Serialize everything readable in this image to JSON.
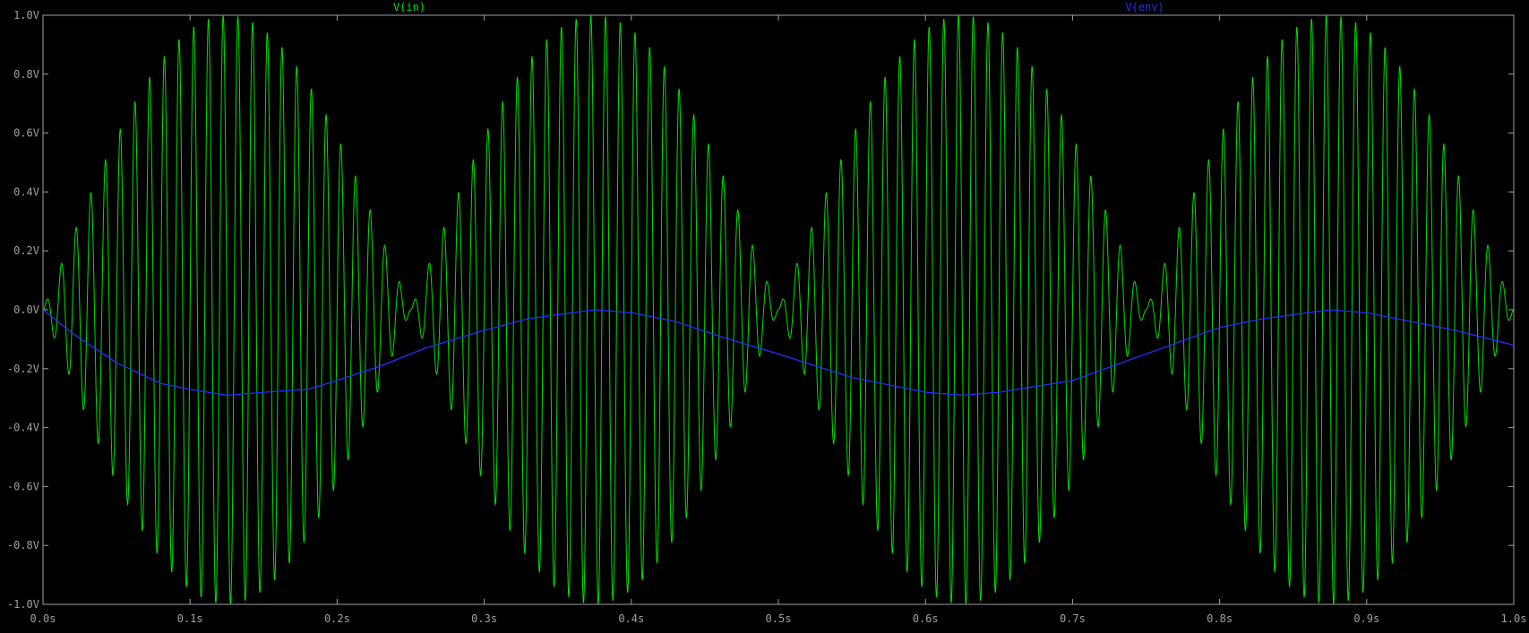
{
  "colors": {
    "background": "#000000",
    "axis": "#a0a0a0",
    "tick_text": "#a0a0a0",
    "vin": "#00e000",
    "venv": "#2030ff"
  },
  "chart_data": {
    "type": "line",
    "title": "",
    "xlabel": "",
    "ylabel": "",
    "xlim": [
      0.0,
      1.0
    ],
    "ylim": [
      -1.0,
      1.0
    ],
    "grid": false,
    "x_ticks": [
      {
        "value": 0.0,
        "label": "0.0s"
      },
      {
        "value": 0.1,
        "label": "0.1s"
      },
      {
        "value": 0.2,
        "label": "0.2s"
      },
      {
        "value": 0.3,
        "label": "0.3s"
      },
      {
        "value": 0.4,
        "label": "0.4s"
      },
      {
        "value": 0.5,
        "label": "0.5s"
      },
      {
        "value": 0.6,
        "label": "0.6s"
      },
      {
        "value": 0.7,
        "label": "0.7s"
      },
      {
        "value": 0.8,
        "label": "0.8s"
      },
      {
        "value": 0.9,
        "label": "0.9s"
      },
      {
        "value": 1.0,
        "label": "1.0s"
      }
    ],
    "y_ticks": [
      {
        "value": 1.0,
        "label": "1.0V"
      },
      {
        "value": 0.8,
        "label": "0.8V"
      },
      {
        "value": 0.6,
        "label": "0.6V"
      },
      {
        "value": 0.4,
        "label": "0.4V"
      },
      {
        "value": 0.2,
        "label": "0.2V"
      },
      {
        "value": 0.0,
        "label": "0.0V"
      },
      {
        "value": -0.2,
        "label": "-0.2V"
      },
      {
        "value": -0.4,
        "label": "-0.4V"
      },
      {
        "value": -0.6,
        "label": "-0.6V"
      },
      {
        "value": -0.8,
        "label": "-0.8V"
      },
      {
        "value": -1.0,
        "label": "-1.0V"
      }
    ],
    "series": [
      {
        "name": "V(in)",
        "color": "#00e000",
        "description_of_shape": "amplitude-modulated sine; envelope |sin(2*pi*2*t)|, carrier ~100 Hz",
        "envelope_freq_hz": 2,
        "carrier_freq_hz": 100,
        "amplitude": 1.0
      },
      {
        "name": "V(env)",
        "color": "#2030ff",
        "x": [
          0.0,
          0.02,
          0.05,
          0.08,
          0.1,
          0.125,
          0.15,
          0.18,
          0.2,
          0.23,
          0.26,
          0.3,
          0.33,
          0.36,
          0.375,
          0.4,
          0.43,
          0.46,
          0.5,
          0.55,
          0.6,
          0.625,
          0.65,
          0.7,
          0.75,
          0.8,
          0.83,
          0.86,
          0.875,
          0.9,
          0.93,
          0.96,
          1.0
        ],
        "y": [
          0.0,
          -0.08,
          -0.18,
          -0.25,
          -0.27,
          -0.29,
          -0.28,
          -0.27,
          -0.24,
          -0.19,
          -0.13,
          -0.07,
          -0.03,
          -0.01,
          0.0,
          -0.01,
          -0.04,
          -0.09,
          -0.15,
          -0.23,
          -0.28,
          -0.29,
          -0.28,
          -0.24,
          -0.15,
          -0.06,
          -0.03,
          -0.01,
          0.0,
          -0.01,
          -0.04,
          -0.07,
          -0.12
        ]
      }
    ]
  }
}
